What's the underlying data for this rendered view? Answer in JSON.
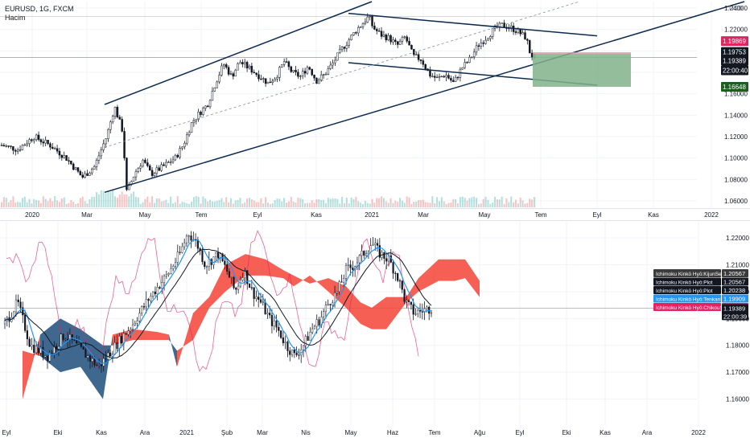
{
  "header": {
    "symbol": "EURUSD, 1G, FXCM",
    "volume_label": "Hacim",
    "currency": "USD"
  },
  "colors": {
    "up": "#26a69a",
    "down": "#ef5350",
    "candle_dark": "#131722",
    "channel": "#0d2b4e",
    "kijun": "#131722",
    "tenkan": "#2196f3",
    "chikou": "#e91e63",
    "cloud_bull": "#1e4d7b",
    "cloud_bear": "#f44336",
    "target_zone": "#81b18b",
    "stop_zone": "#f48fb1"
  },
  "chart_data": [
    {
      "type": "line",
      "title": "EURUSD, 1G, FXCM",
      "x_ticks": [
        "2020",
        "Mar",
        "May",
        "Tem",
        "Eyl",
        "Kas",
        "2021",
        "Mar",
        "May",
        "Tem",
        "Eyl",
        "Kas",
        "2022"
      ],
      "y_ticks": [
        1.06,
        1.08,
        1.1,
        1.12,
        1.14,
        1.16,
        1.18,
        1.2,
        1.22,
        1.24
      ],
      "ylim": [
        1.054,
        1.246
      ],
      "series": [
        {
          "name": "EURUSD",
          "points": [
            [
              0,
              1.112
            ],
            [
              4,
              1.108
            ],
            [
              8,
              1.12
            ],
            [
              12,
              1.112
            ],
            [
              16,
              1.1
            ],
            [
              20,
              1.082
            ],
            [
              23,
              1.092
            ],
            [
              26,
              1.12
            ],
            [
              28,
              1.148
            ],
            [
              30,
              1.125
            ],
            [
              31,
              1.068
            ],
            [
              33,
              1.086
            ],
            [
              35,
              1.098
            ],
            [
              37,
              1.085
            ],
            [
              40,
              1.092
            ],
            [
              43,
              1.1
            ],
            [
              45,
              1.112
            ],
            [
              47,
              1.132
            ],
            [
              49,
              1.142
            ],
            [
              51,
              1.15
            ],
            [
              53,
              1.17
            ],
            [
              55,
              1.188
            ],
            [
              57,
              1.176
            ],
            [
              59,
              1.19
            ],
            [
              62,
              1.182
            ],
            [
              64,
              1.176
            ],
            [
              66,
              1.17
            ],
            [
              68,
              1.176
            ],
            [
              70,
              1.19
            ],
            [
              72,
              1.18
            ],
            [
              74,
              1.176
            ],
            [
              76,
              1.186
            ],
            [
              78,
              1.172
            ],
            [
              80,
              1.178
            ],
            [
              82,
              1.188
            ],
            [
              84,
              1.2
            ],
            [
              86,
              1.21
            ],
            [
              88,
              1.22
            ],
            [
              90,
              1.228
            ],
            [
              91,
              1.232
            ],
            [
              92,
              1.222
            ],
            [
              94,
              1.215
            ],
            [
              96,
              1.212
            ],
            [
              98,
              1.205
            ],
            [
              100,
              1.213
            ],
            [
              102,
              1.195
            ],
            [
              104,
              1.192
            ],
            [
              106,
              1.178
            ],
            [
              108,
              1.174
            ],
            [
              110,
              1.178
            ],
            [
              112,
              1.17
            ],
            [
              114,
              1.184
            ],
            [
              116,
              1.192
            ],
            [
              118,
              1.205
            ],
            [
              120,
              1.212
            ],
            [
              122,
              1.22
            ],
            [
              124,
              1.224
            ],
            [
              126,
              1.222
            ],
            [
              128,
              1.218
            ],
            [
              130,
              1.212
            ],
            [
              131,
              1.197
            ],
            [
              132,
              1.194
            ]
          ]
        }
      ],
      "channels": [
        {
          "name": "upper_rising",
          "y_start": 1.15,
          "y_end": 1.246
        },
        {
          "name": "lower_rising",
          "y_start": 1.068,
          "y_end": 1.23
        },
        {
          "name": "upper_falling",
          "y_start": 1.233,
          "y_end": 1.216
        },
        {
          "name": "lower_falling",
          "y_start": 1.189,
          "y_end": 1.171
        }
      ],
      "position": {
        "entry": 1.19753,
        "stop": 1.19869,
        "target": 1.16648
      },
      "price_labels": [
        {
          "text": "1.19869",
          "kind": "stop"
        },
        {
          "text": "1.19753",
          "kind": "entry"
        },
        {
          "text": "1.19389",
          "kind": "last"
        },
        {
          "text": "22:00:40",
          "kind": "timer"
        },
        {
          "text": "1.16648",
          "kind": "target"
        }
      ]
    },
    {
      "type": "line",
      "title": "Ichimoku Kinkō Hyō",
      "x_ticks": [
        "Eyl",
        "Eki",
        "Kas",
        "Ara",
        "2021",
        "Şub",
        "Mar",
        "Nis",
        "May",
        "Haz",
        "Tem",
        "Ağu",
        "Eyl",
        "Eki",
        "Kas",
        "Ara",
        "2022"
      ],
      "y_ticks": [
        1.16,
        1.17,
        1.18,
        1.19,
        1.2,
        1.21,
        1.22
      ],
      "ylim": [
        1.15,
        1.226
      ],
      "series": [
        {
          "name": "Ichimoku Kinkō Hyō:KijunSen",
          "last": 1.20567
        },
        {
          "name": "Ichimoku Kinkō Hyō:Plot",
          "last": 1.20567
        },
        {
          "name": "Ichimoku Kinkō Hyō:Plot",
          "last": 1.20238
        },
        {
          "name": "Ichimoku Kinkō Hyō:TenkanSen",
          "last": 1.19909
        },
        {
          "name": "Ichimoku Kinkō Hyō:ChikouSpan",
          "last": 1.19389
        }
      ],
      "price_labels": [
        {
          "text": "1.20567"
        },
        {
          "text": "1.20567"
        },
        {
          "text": "1.20238"
        },
        {
          "text": "1.19909"
        },
        {
          "text": "1.19389"
        },
        {
          "text": "1.19389"
        },
        {
          "text": "22:00:39"
        }
      ],
      "close_path": [
        [
          0,
          1.188
        ],
        [
          3,
          1.196
        ],
        [
          6,
          1.18
        ],
        [
          10,
          1.176
        ],
        [
          14,
          1.184
        ],
        [
          18,
          1.178
        ],
        [
          22,
          1.172
        ],
        [
          26,
          1.18
        ],
        [
          30,
          1.188
        ],
        [
          34,
          1.198
        ],
        [
          38,
          1.206
        ],
        [
          41,
          1.214
        ],
        [
          43,
          1.222
        ],
        [
          45,
          1.218
        ],
        [
          47,
          1.21
        ],
        [
          50,
          1.214
        ],
        [
          52,
          1.208
        ],
        [
          54,
          1.2
        ],
        [
          56,
          1.208
        ],
        [
          58,
          1.2
        ],
        [
          60,
          1.196
        ],
        [
          62,
          1.19
        ],
        [
          64,
          1.186
        ],
        [
          66,
          1.18
        ],
        [
          68,
          1.176
        ],
        [
          70,
          1.18
        ],
        [
          72,
          1.186
        ],
        [
          74,
          1.19
        ],
        [
          76,
          1.196
        ],
        [
          78,
          1.2
        ],
        [
          80,
          1.208
        ],
        [
          82,
          1.21
        ],
        [
          84,
          1.214
        ],
        [
          86,
          1.218
        ],
        [
          88,
          1.214
        ],
        [
          90,
          1.212
        ],
        [
          92,
          1.206
        ],
        [
          94,
          1.196
        ],
        [
          96,
          1.192
        ],
        [
          98,
          1.193
        ],
        [
          100,
          1.194
        ]
      ]
    }
  ]
}
